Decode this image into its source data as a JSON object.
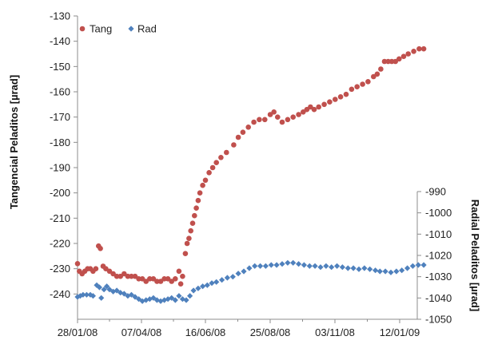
{
  "chart_data": {
    "type": "scatter",
    "x_axis": {
      "ticks": [
        "28/01/08",
        "07/04/08",
        "16/06/08",
        "25/08/08",
        "03/11/08",
        "12/01/09"
      ],
      "range": [
        "2008-01-28",
        "2009-02-15"
      ]
    },
    "y_left": {
      "label": "Tangencial Peladitos [µrad]",
      "range": [
        -250,
        -130
      ],
      "ticks": [
        -130,
        -140,
        -150,
        -160,
        -170,
        -180,
        -190,
        -200,
        -210,
        -220,
        -230,
        -240
      ]
    },
    "y_right": {
      "label": "Radial Peladitos [µrad]",
      "range": [
        -1050,
        -990
      ],
      "ticks": [
        -990,
        -1000,
        -1010,
        -1020,
        -1030,
        -1040,
        -1050
      ]
    },
    "legend": {
      "position": "top-left",
      "entries": [
        "Tang",
        "Rad"
      ]
    },
    "grid": false,
    "series": [
      {
        "name": "Tang",
        "axis": "left",
        "color": "#c0504d",
        "marker": "circle",
        "points": [
          [
            "2008-01-28",
            -228
          ],
          [
            "2008-01-30",
            -231
          ],
          [
            "2008-02-02",
            -232
          ],
          [
            "2008-02-05",
            -231
          ],
          [
            "2008-02-08",
            -230
          ],
          [
            "2008-02-11",
            -230
          ],
          [
            "2008-02-14",
            -231
          ],
          [
            "2008-02-17",
            -230
          ],
          [
            "2008-02-20",
            -221
          ],
          [
            "2008-02-22",
            -222
          ],
          [
            "2008-02-25",
            -229
          ],
          [
            "2008-02-28",
            -230
          ],
          [
            "2008-03-03",
            -231
          ],
          [
            "2008-03-07",
            -232
          ],
          [
            "2008-03-11",
            -233
          ],
          [
            "2008-03-15",
            -233
          ],
          [
            "2008-03-19",
            -232
          ],
          [
            "2008-03-23",
            -233
          ],
          [
            "2008-03-27",
            -233
          ],
          [
            "2008-03-31",
            -233
          ],
          [
            "2008-04-04",
            -234
          ],
          [
            "2008-04-08",
            -234
          ],
          [
            "2008-04-12",
            -235
          ],
          [
            "2008-04-16",
            -234
          ],
          [
            "2008-04-20",
            -234
          ],
          [
            "2008-04-24",
            -235
          ],
          [
            "2008-04-28",
            -235
          ],
          [
            "2008-05-02",
            -234
          ],
          [
            "2008-05-06",
            -234
          ],
          [
            "2008-05-10",
            -235
          ],
          [
            "2008-05-14",
            -234
          ],
          [
            "2008-05-18",
            -231
          ],
          [
            "2008-05-20",
            -236
          ],
          [
            "2008-05-22",
            -233
          ],
          [
            "2008-05-25",
            -224
          ],
          [
            "2008-05-27",
            -220
          ],
          [
            "2008-05-29",
            -218
          ],
          [
            "2008-05-31",
            -215
          ],
          [
            "2008-06-02",
            -212
          ],
          [
            "2008-06-04",
            -209
          ],
          [
            "2008-06-06",
            -206
          ],
          [
            "2008-06-08",
            -203
          ],
          [
            "2008-06-10",
            -200
          ],
          [
            "2008-06-13",
            -197
          ],
          [
            "2008-06-16",
            -195
          ],
          [
            "2008-06-20",
            -192
          ],
          [
            "2008-06-24",
            -190
          ],
          [
            "2008-06-28",
            -188
          ],
          [
            "2008-07-03",
            -186
          ],
          [
            "2008-07-09",
            -184
          ],
          [
            "2008-07-17",
            -181
          ],
          [
            "2008-07-22",
            -178
          ],
          [
            "2008-07-27",
            -176
          ],
          [
            "2008-08-02",
            -174
          ],
          [
            "2008-08-08",
            -172
          ],
          [
            "2008-08-14",
            -171
          ],
          [
            "2008-08-20",
            -171
          ],
          [
            "2008-08-26",
            -169
          ],
          [
            "2008-08-30",
            -168
          ],
          [
            "2008-09-03",
            -170
          ],
          [
            "2008-09-08",
            -172
          ],
          [
            "2008-09-14",
            -171
          ],
          [
            "2008-09-20",
            -170
          ],
          [
            "2008-09-26",
            -169
          ],
          [
            "2008-10-01",
            -168
          ],
          [
            "2008-10-05",
            -167
          ],
          [
            "2008-10-09",
            -166
          ],
          [
            "2008-10-13",
            -167
          ],
          [
            "2008-10-18",
            -166
          ],
          [
            "2008-10-24",
            -165
          ],
          [
            "2008-10-30",
            -164
          ],
          [
            "2008-11-05",
            -163
          ],
          [
            "2008-11-11",
            -162
          ],
          [
            "2008-11-17",
            -161
          ],
          [
            "2008-11-23",
            -159
          ],
          [
            "2008-11-29",
            -158
          ],
          [
            "2008-12-05",
            -157
          ],
          [
            "2008-12-11",
            -156
          ],
          [
            "2008-12-17",
            -154
          ],
          [
            "2008-12-21",
            -153
          ],
          [
            "2008-12-25",
            -151
          ],
          [
            "2008-12-29",
            -148
          ],
          [
            "2009-01-02",
            -148
          ],
          [
            "2009-01-06",
            -148
          ],
          [
            "2009-01-10",
            -148
          ],
          [
            "2009-01-14",
            -147
          ],
          [
            "2009-01-19",
            -146
          ],
          [
            "2009-01-24",
            -145
          ],
          [
            "2009-01-30",
            -144
          ],
          [
            "2009-02-05",
            -143
          ],
          [
            "2009-02-10",
            -143
          ]
        ]
      },
      {
        "name": "Rad",
        "axis": "right",
        "color": "#4f81bd",
        "marker": "diamond",
        "points": [
          [
            "2008-01-28",
            -1039.5
          ],
          [
            "2008-01-31",
            -1039.0
          ],
          [
            "2008-02-03",
            -1038.5
          ],
          [
            "2008-02-07",
            -1038.5
          ],
          [
            "2008-02-11",
            -1038.5
          ],
          [
            "2008-02-14",
            -1039.0
          ],
          [
            "2008-02-18",
            -1034.0
          ],
          [
            "2008-02-21",
            -1035.0
          ],
          [
            "2008-02-23",
            -1040.0
          ],
          [
            "2008-02-26",
            -1036.0
          ],
          [
            "2008-02-29",
            -1034.5
          ],
          [
            "2008-03-03",
            -1036.0
          ],
          [
            "2008-03-07",
            -1037.0
          ],
          [
            "2008-03-11",
            -1036.5
          ],
          [
            "2008-03-15",
            -1037.5
          ],
          [
            "2008-03-19",
            -1038.0
          ],
          [
            "2008-03-23",
            -1039.0
          ],
          [
            "2008-03-27",
            -1038.5
          ],
          [
            "2008-03-31",
            -1039.5
          ],
          [
            "2008-04-04",
            -1040.5
          ],
          [
            "2008-04-08",
            -1041.5
          ],
          [
            "2008-04-12",
            -1041.0
          ],
          [
            "2008-04-16",
            -1040.5
          ],
          [
            "2008-04-20",
            -1040.0
          ],
          [
            "2008-04-24",
            -1041.0
          ],
          [
            "2008-04-28",
            -1041.5
          ],
          [
            "2008-05-02",
            -1041.0
          ],
          [
            "2008-05-06",
            -1040.5
          ],
          [
            "2008-05-10",
            -1040.0
          ],
          [
            "2008-05-14",
            -1041.0
          ],
          [
            "2008-05-18",
            -1039.0
          ],
          [
            "2008-05-22",
            -1040.5
          ],
          [
            "2008-05-26",
            -1041.0
          ],
          [
            "2008-05-30",
            -1039.0
          ],
          [
            "2008-06-03",
            -1036.5
          ],
          [
            "2008-06-08",
            -1035.5
          ],
          [
            "2008-06-13",
            -1034.5
          ],
          [
            "2008-06-18",
            -1034.0
          ],
          [
            "2008-06-23",
            -1033.0
          ],
          [
            "2008-06-28",
            -1032.5
          ],
          [
            "2008-07-04",
            -1031.5
          ],
          [
            "2008-07-10",
            -1030.5
          ],
          [
            "2008-07-16",
            -1030.0
          ],
          [
            "2008-07-22",
            -1028.5
          ],
          [
            "2008-07-28",
            -1027.5
          ],
          [
            "2008-08-03",
            -1026.0
          ],
          [
            "2008-08-09",
            -1025.0
          ],
          [
            "2008-08-15",
            -1025.0
          ],
          [
            "2008-08-21",
            -1025.0
          ],
          [
            "2008-08-27",
            -1024.5
          ],
          [
            "2008-09-02",
            -1024.5
          ],
          [
            "2008-09-08",
            -1024.0
          ],
          [
            "2008-09-14",
            -1023.5
          ],
          [
            "2008-09-20",
            -1023.5
          ],
          [
            "2008-09-26",
            -1024.0
          ],
          [
            "2008-10-02",
            -1024.5
          ],
          [
            "2008-10-08",
            -1025.0
          ],
          [
            "2008-10-14",
            -1025.0
          ],
          [
            "2008-10-20",
            -1025.5
          ],
          [
            "2008-10-26",
            -1025.0
          ],
          [
            "2008-11-01",
            -1025.5
          ],
          [
            "2008-11-07",
            -1025.0
          ],
          [
            "2008-11-13",
            -1025.5
          ],
          [
            "2008-11-19",
            -1026.0
          ],
          [
            "2008-11-25",
            -1026.0
          ],
          [
            "2008-12-01",
            -1026.5
          ],
          [
            "2008-12-07",
            -1026.0
          ],
          [
            "2008-12-13",
            -1026.5
          ],
          [
            "2008-12-19",
            -1027.0
          ],
          [
            "2008-12-24",
            -1027.5
          ],
          [
            "2008-12-30",
            -1027.5
          ],
          [
            "2009-01-05",
            -1028.0
          ],
          [
            "2009-01-11",
            -1027.5
          ],
          [
            "2009-01-17",
            -1027.0
          ],
          [
            "2009-01-23",
            -1026.0
          ],
          [
            "2009-01-29",
            -1025.0
          ],
          [
            "2009-02-04",
            -1024.5
          ],
          [
            "2009-02-10",
            -1024.5
          ]
        ]
      }
    ]
  }
}
